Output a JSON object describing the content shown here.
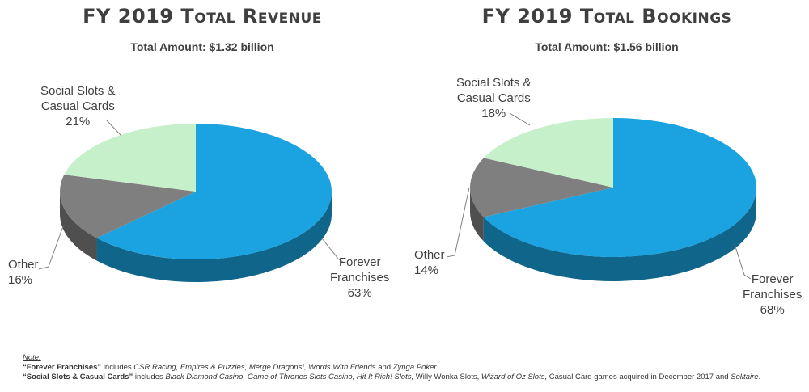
{
  "chart_data": [
    {
      "type": "pie",
      "title": "FY 2019 Total Revenue",
      "subtitle": "Total Amount: $1.32 billion",
      "slices": [
        {
          "name": "Forever Franchises",
          "value": 63,
          "label": "63%",
          "color": "#1aa3e0"
        },
        {
          "name": "Other",
          "value": 16,
          "label": "16%",
          "color": "#7f7f7f"
        },
        {
          "name": "Social Slots & Casual Cards",
          "value": 21,
          "label": "21%",
          "color": "#c6f0c9"
        }
      ]
    },
    {
      "type": "pie",
      "title": "FY 2019 Total Bookings",
      "subtitle": "Total Amount: $1.56 billion",
      "slices": [
        {
          "name": "Forever Franchises",
          "value": 68,
          "label": "68%",
          "color": "#1aa3e0"
        },
        {
          "name": "Other",
          "value": 14,
          "label": "14%",
          "color": "#7f7f7f"
        },
        {
          "name": "Social Slots & Casual Cards",
          "value": 18,
          "label": "18%",
          "color": "#c6f0c9"
        }
      ]
    }
  ],
  "labels": {
    "revenue": {
      "social_line1": "Social Slots &",
      "social_line2": "Casual Cards",
      "social_pct": "21%",
      "other_line1": "Other",
      "other_pct": "16%",
      "forever_line1": "Forever",
      "forever_line2": "Franchises",
      "forever_pct": "63%"
    },
    "bookings": {
      "social_line1": "Social Slots &",
      "social_line2": "Casual Cards",
      "social_pct": "18%",
      "other_line1": "Other",
      "other_pct": "14%",
      "forever_line1": "Forever",
      "forever_line2": "Franchises",
      "forever_pct": "68%"
    }
  },
  "notes": {
    "heading": "Note:",
    "line1_bold": "“Forever Franchises”",
    "line1_text_a": " includes ",
    "line1_italic_a": "CSR Racing, Empires & Puzzles, Merge Dragons!, Words With Friends",
    "line1_text_b": " and ",
    "line1_italic_b": "Zynga Poker",
    "line1_end": ".",
    "line2_bold": "“Social Slots & Casual Cards”",
    "line2_text_a": " includes ",
    "line2_italic_a": "Black Diamond Casino, Game of Thrones Slots Casino, Hit It Rich! Slots,",
    "line2_text_b": " Willy Wonka Slots, ",
    "line2_italic_b": "Wizard of Oz Slots,",
    "line2_text_c": " Casual Card games acquired in December 2017 and ",
    "line2_italic_c": "Solitaire",
    "line2_end": "."
  }
}
